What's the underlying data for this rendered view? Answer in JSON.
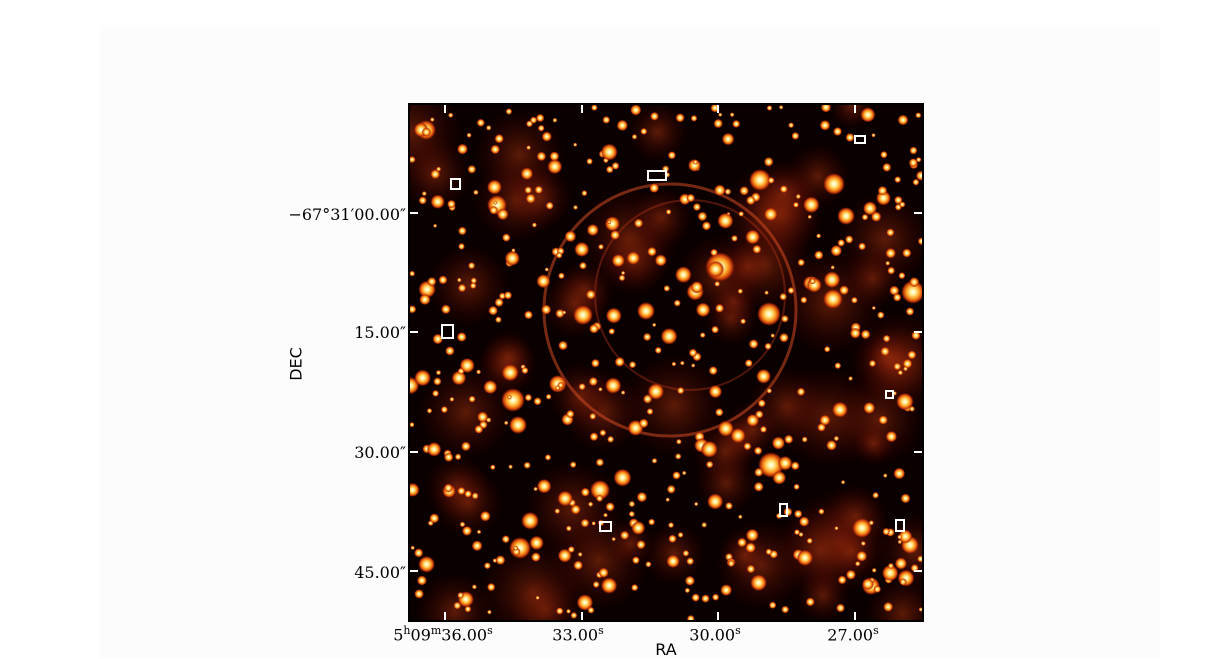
{
  "figure": {
    "x_axis_title": "RA",
    "y_axis_title": "DEC",
    "y_ticks": [
      "−67°31′00.00″",
      "15.00″",
      "30.00″",
      "45.00″"
    ],
    "x_ticks": [
      {
        "h": "5",
        "hs": "h",
        "m": "09",
        "ms": "m",
        "s": "36.00",
        "ss": "s"
      },
      {
        "s": "33.00",
        "ss": "s"
      },
      {
        "s": "30.00",
        "ss": "s"
      },
      {
        "s": "27.00",
        "ss": "s"
      }
    ],
    "colormap": "hot",
    "image_content": "star field with circular shell nebula",
    "marker_boxes": 8
  }
}
